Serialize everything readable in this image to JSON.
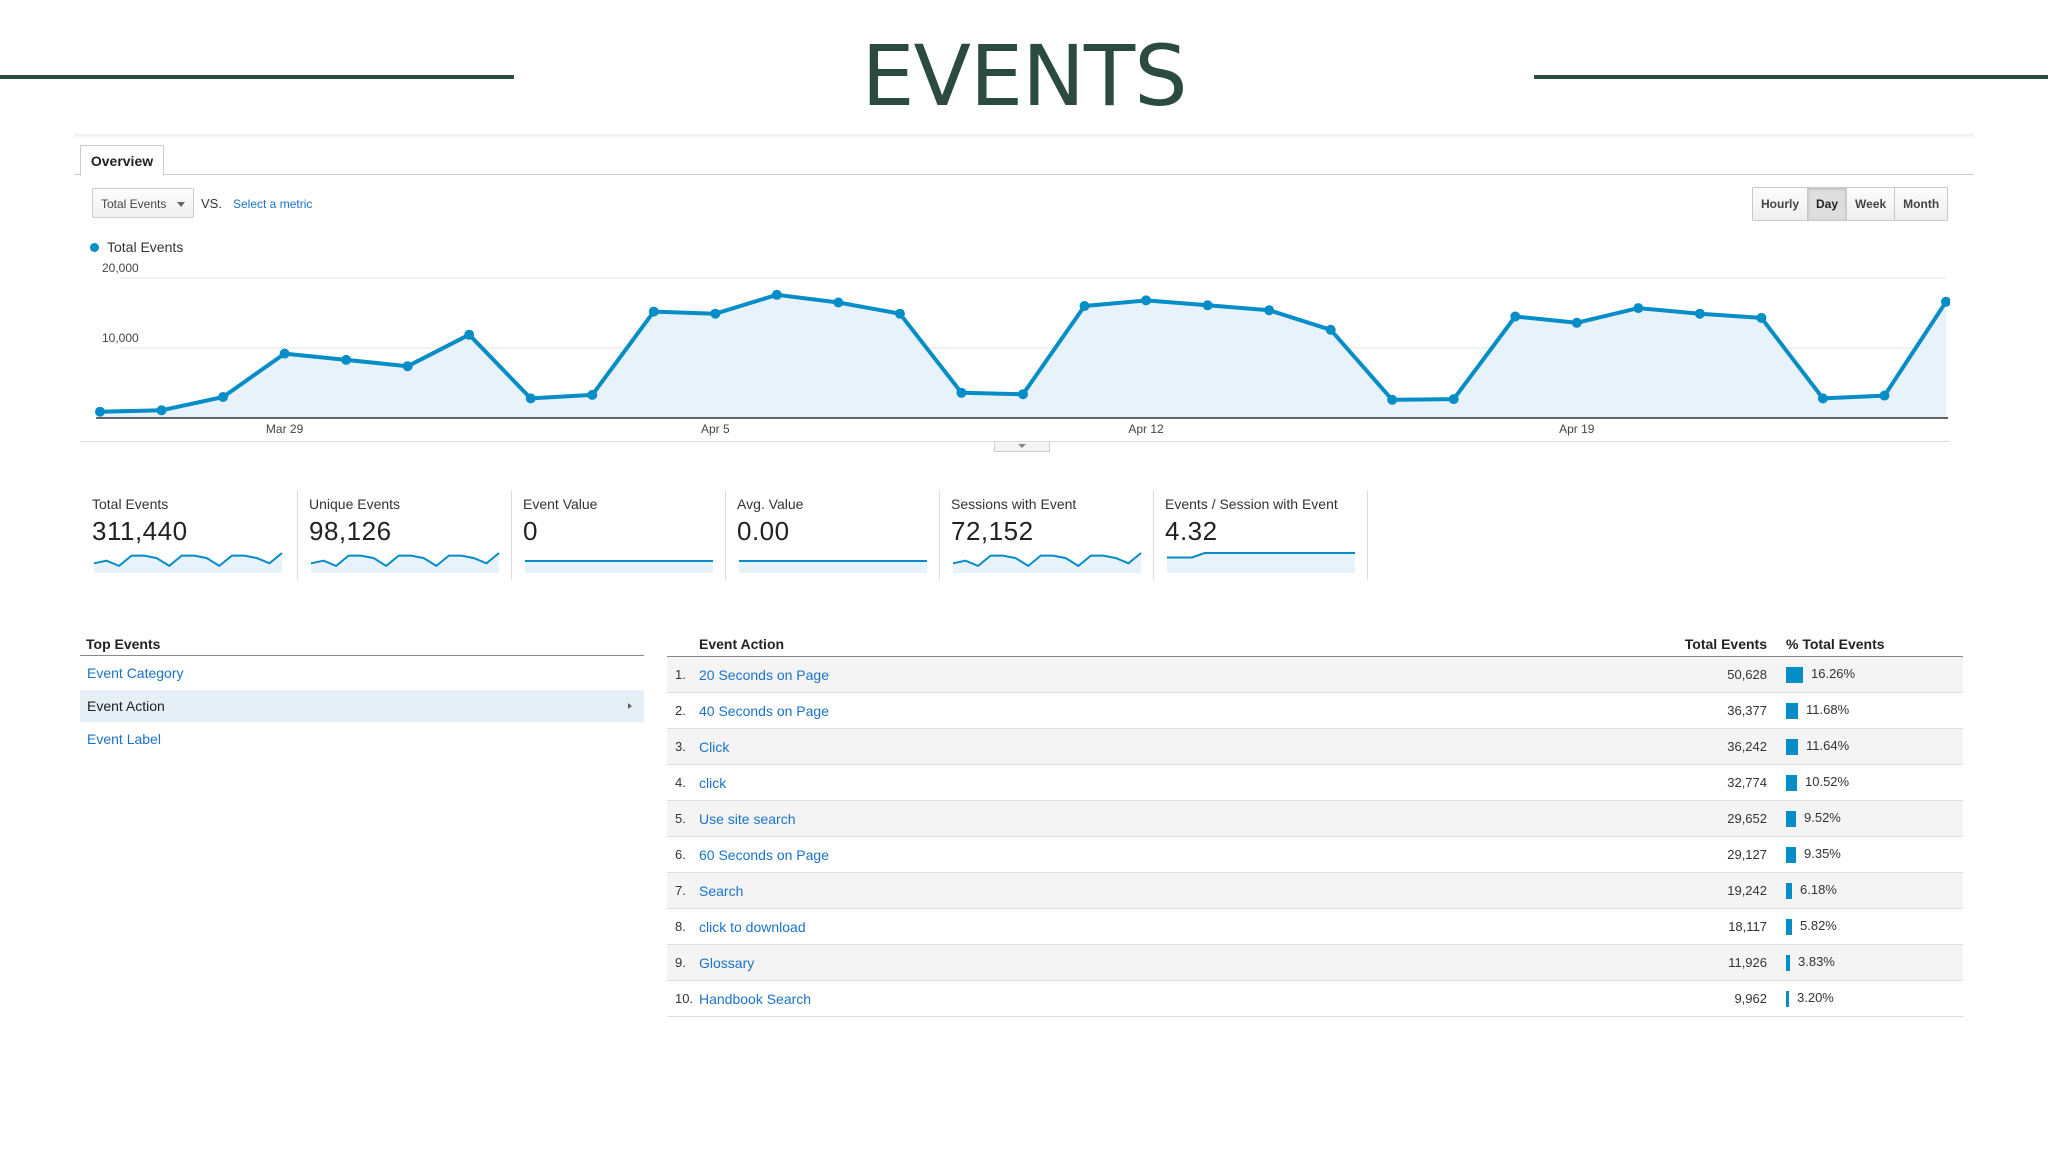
{
  "slide": {
    "title": "EVENTS"
  },
  "tabs": [
    {
      "label": "Overview"
    }
  ],
  "metric_picker": {
    "selected": "Total Events",
    "vs_label": "VS.",
    "select_metric": "Select a metric"
  },
  "granularity": {
    "options": [
      "Hourly",
      "Day",
      "Week",
      "Month"
    ],
    "active": "Day"
  },
  "colors": {
    "accent": "#058dc7",
    "fill": "#e8f2fb",
    "title": "#2b4a40",
    "link": "#1a73c8"
  },
  "chart_data": {
    "type": "line",
    "series": [
      {
        "name": "Total Events",
        "values": [
          900,
          1100,
          3000,
          9200,
          8300,
          7400,
          11900,
          2800,
          3300,
          15200,
          14900,
          17600,
          16500,
          14900,
          3600,
          3400,
          16000,
          16800,
          16100,
          15400,
          12600,
          2600,
          2700,
          14500,
          13600,
          15700,
          14900,
          14300,
          2800,
          3200,
          16600
        ]
      }
    ],
    "x_tick_labels": [
      "Mar 29",
      "Apr 5",
      "Apr 12",
      "Apr 19"
    ],
    "x_tick_index": [
      3,
      10,
      17,
      24
    ],
    "y_tick_labels": [
      "20,000",
      "10,000"
    ],
    "y_ticks": [
      20000,
      10000
    ],
    "ylim": [
      0,
      20000
    ],
    "grid": true,
    "legend": "top-left"
  },
  "scorecards": [
    {
      "label": "Total Events",
      "value": "311,440",
      "spark": [
        3,
        4,
        2,
        6,
        6,
        5,
        2,
        6,
        6,
        5,
        2,
        6,
        6,
        5,
        3,
        7
      ]
    },
    {
      "label": "Unique Events",
      "value": "98,126",
      "spark": [
        3,
        4,
        2,
        6,
        6,
        5,
        2,
        6,
        6,
        5,
        2,
        6,
        6,
        5,
        3,
        7
      ]
    },
    {
      "label": "Event Value",
      "value": "0",
      "spark": [
        0,
        0
      ]
    },
    {
      "label": "Avg. Value",
      "value": "0.00",
      "spark": [
        0,
        0
      ]
    },
    {
      "label": "Sessions with Event",
      "value": "72,152",
      "spark": [
        3,
        4,
        2,
        6,
        6,
        5,
        2,
        6,
        6,
        5,
        2,
        6,
        6,
        5,
        3,
        7
      ]
    },
    {
      "label": "Events / Session with Event",
      "value": "4.32",
      "spark": [
        3,
        3,
        3,
        4,
        4,
        4,
        4,
        4,
        4,
        4,
        4,
        4,
        4,
        4,
        4,
        4
      ]
    }
  ],
  "top_events": {
    "header": "Top Events",
    "items": [
      {
        "label": "Event Category"
      },
      {
        "label": "Event Action"
      },
      {
        "label": "Event Label"
      }
    ],
    "selected_index": 1
  },
  "table": {
    "headers": {
      "dimension": "Event Action",
      "total": "Total Events",
      "pct": "% Total Events"
    },
    "rows": [
      {
        "rank": "1.",
        "name": "20 Seconds on Page",
        "total": "50,628",
        "pct": "16.26%",
        "pct_value": 16.26
      },
      {
        "rank": "2.",
        "name": "40 Seconds on Page",
        "total": "36,377",
        "pct": "11.68%",
        "pct_value": 11.68
      },
      {
        "rank": "3.",
        "name": "Click",
        "total": "36,242",
        "pct": "11.64%",
        "pct_value": 11.64
      },
      {
        "rank": "4.",
        "name": "click",
        "total": "32,774",
        "pct": "10.52%",
        "pct_value": 10.52
      },
      {
        "rank": "5.",
        "name": "Use site search",
        "total": "29,652",
        "pct": "9.52%",
        "pct_value": 9.52
      },
      {
        "rank": "6.",
        "name": "60 Seconds on Page",
        "total": "29,127",
        "pct": "9.35%",
        "pct_value": 9.35
      },
      {
        "rank": "7.",
        "name": "Search",
        "total": "19,242",
        "pct": "6.18%",
        "pct_value": 6.18
      },
      {
        "rank": "8.",
        "name": "click to download",
        "total": "18,117",
        "pct": "5.82%",
        "pct_value": 5.82
      },
      {
        "rank": "9.",
        "name": "Glossary",
        "total": "11,926",
        "pct": "3.83%",
        "pct_value": 3.83
      },
      {
        "rank": "10.",
        "name": "Handbook Search",
        "total": "9,962",
        "pct": "3.20%",
        "pct_value": 3.2
      }
    ]
  }
}
